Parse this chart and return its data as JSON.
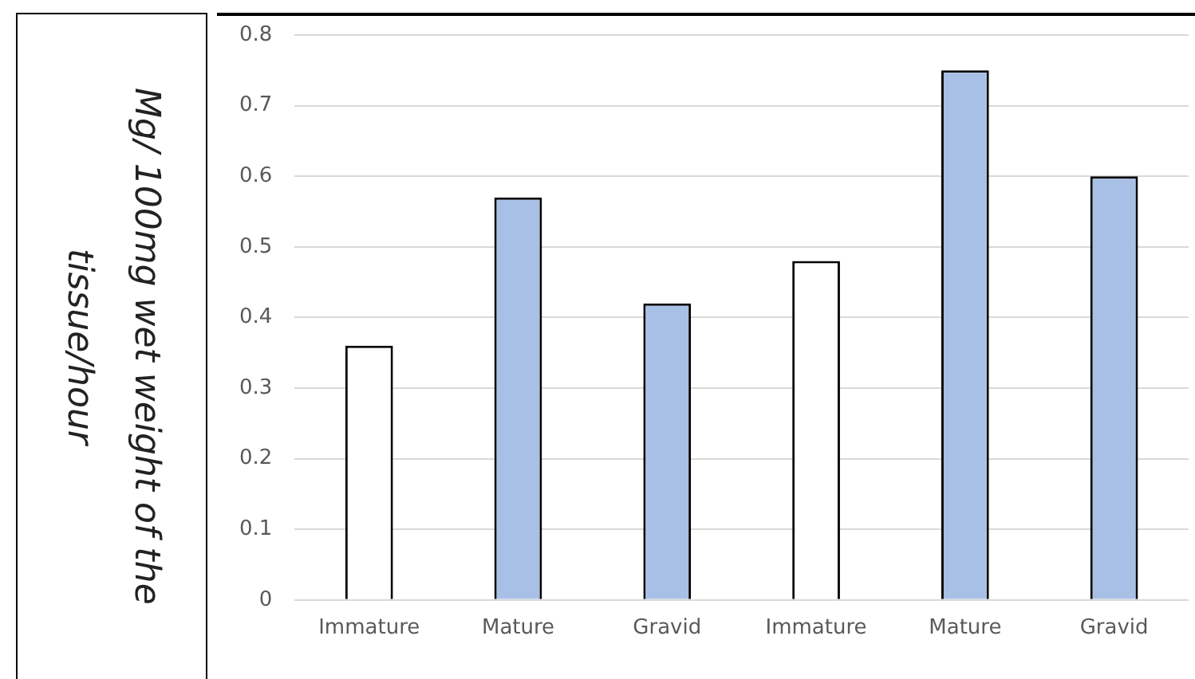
{
  "chart_data": {
    "type": "bar",
    "ylabel": "Mg/ 100mg wet weight of the tissue/hour",
    "categories": [
      "Immature",
      "Mature",
      "Gravid",
      "Immature",
      "Mature",
      "Gravid"
    ],
    "values": [
      0.36,
      0.57,
      0.42,
      0.48,
      0.75,
      0.6
    ],
    "colors": [
      "#ffffff",
      "#a9c0e6",
      "#a9c0e6",
      "#ffffff",
      "#a9c0e6",
      "#a9c0e6"
    ],
    "ylim": [
      0,
      0.8
    ],
    "yticks": [
      0,
      0.1,
      0.2,
      0.3,
      0.4,
      0.5,
      0.6,
      0.7,
      0.8
    ],
    "grid": "y",
    "legend": false
  }
}
